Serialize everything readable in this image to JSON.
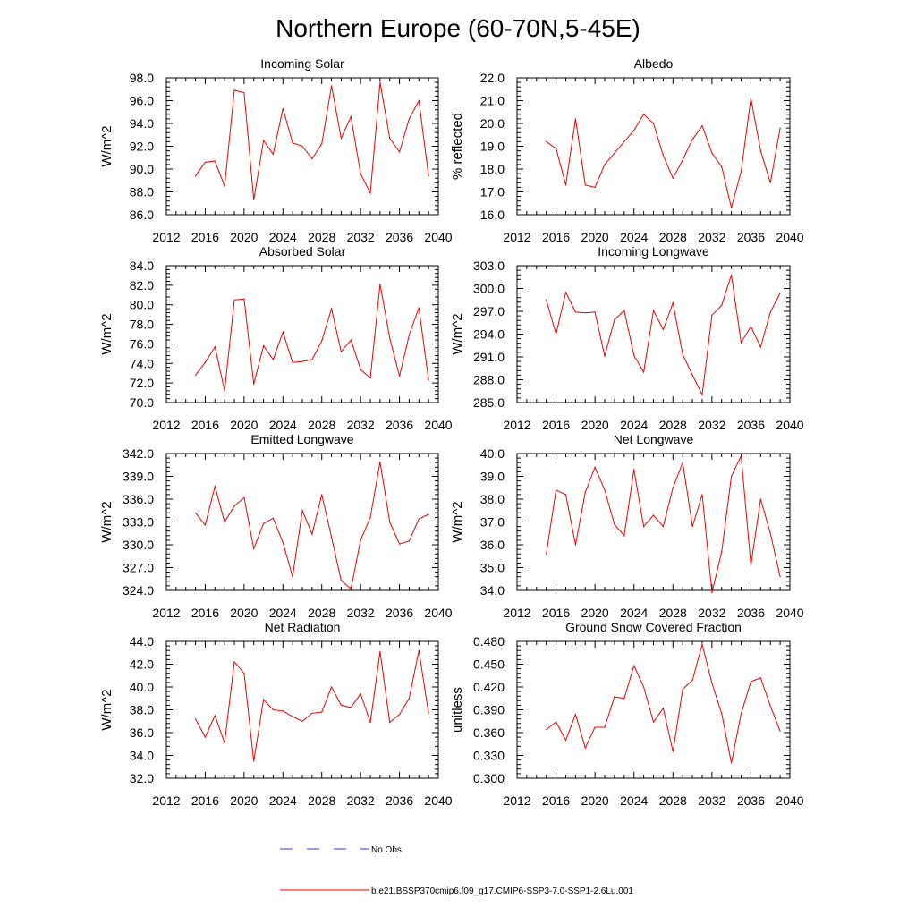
{
  "figure": {
    "title": "Northern Europe (60-70N,5-45E)"
  },
  "legend": {
    "obs_label": "No Obs",
    "obs_color": "#3a3ac8",
    "model_label": "b.e21.BSSP370cmip6.f09_g17.CMIP6-SSP3-7.0-SSP1-2.6Lu.001",
    "model_color": "#ee0000"
  },
  "chart_data": [
    {
      "type": "line",
      "title": "Incoming Solar",
      "ylabel": "W/m^2",
      "xlabel": "",
      "xlim": [
        2012,
        2040
      ],
      "xticks": [
        "2012",
        "2016",
        "2020",
        "2024",
        "2028",
        "2032",
        "2036",
        "2040"
      ],
      "ylim": [
        86.0,
        98.0
      ],
      "yticks": [
        "86.0",
        "88.0",
        "90.0",
        "92.0",
        "94.0",
        "96.0",
        "98.0"
      ],
      "x": [
        2015,
        2016,
        2017,
        2018,
        2019,
        2020,
        2021,
        2022,
        2023,
        2024,
        2025,
        2026,
        2027,
        2028,
        2029,
        2030,
        2031,
        2032,
        2033,
        2034,
        2035,
        2036,
        2037,
        2038,
        2039
      ],
      "series": [
        {
          "values": [
            89.4,
            90.6,
            90.7,
            88.5,
            96.9,
            96.7,
            87.3,
            92.5,
            91.3,
            95.3,
            92.3,
            92.0,
            90.9,
            92.2,
            97.3,
            92.7,
            94.6,
            89.6,
            87.9,
            97.6,
            92.7,
            91.5,
            94.4,
            96.0,
            89.4
          ]
        }
      ]
    },
    {
      "type": "line",
      "title": "Albedo",
      "ylabel": "% reflected",
      "xlabel": "",
      "xlim": [
        2012,
        2040
      ],
      "xticks": [
        "2012",
        "2016",
        "2020",
        "2024",
        "2028",
        "2032",
        "2036",
        "2040"
      ],
      "ylim": [
        16.0,
        22.0
      ],
      "yticks": [
        "16.0",
        "17.0",
        "18.0",
        "19.0",
        "20.0",
        "21.0",
        "22.0"
      ],
      "x": [
        2015,
        2016,
        2017,
        2018,
        2019,
        2020,
        2021,
        2022,
        2023,
        2024,
        2025,
        2026,
        2027,
        2028,
        2029,
        2030,
        2031,
        2032,
        2033,
        2034,
        2035,
        2036,
        2037,
        2038,
        2039
      ],
      "series": [
        {
          "values": [
            19.2,
            18.9,
            17.3,
            20.2,
            17.3,
            17.2,
            18.2,
            18.7,
            19.2,
            19.7,
            20.4,
            20.0,
            18.6,
            17.6,
            18.4,
            19.3,
            19.9,
            18.7,
            18.1,
            16.3,
            17.9,
            21.1,
            18.8,
            17.4,
            19.8
          ]
        }
      ]
    },
    {
      "type": "line",
      "title": "Absorbed Solar",
      "ylabel": "W/m^2",
      "xlabel": "",
      "xlim": [
        2012,
        2040
      ],
      "xticks": [
        "2012",
        "2016",
        "2020",
        "2024",
        "2028",
        "2032",
        "2036",
        "2040"
      ],
      "ylim": [
        70.0,
        84.0
      ],
      "yticks": [
        "70.0",
        "72.0",
        "74.0",
        "76.0",
        "78.0",
        "80.0",
        "82.0",
        "84.0"
      ],
      "x": [
        2015,
        2016,
        2017,
        2018,
        2019,
        2020,
        2021,
        2022,
        2023,
        2024,
        2025,
        2026,
        2027,
        2028,
        2029,
        2030,
        2031,
        2032,
        2033,
        2034,
        2035,
        2036,
        2037,
        2038,
        2039
      ],
      "series": [
        {
          "values": [
            72.8,
            74.1,
            75.7,
            71.2,
            80.5,
            80.6,
            71.9,
            75.8,
            74.4,
            77.2,
            74.1,
            74.2,
            74.4,
            76.3,
            79.6,
            75.2,
            76.4,
            73.4,
            72.5,
            82.1,
            76.6,
            72.7,
            76.9,
            79.7,
            72.3
          ]
        }
      ]
    },
    {
      "type": "line",
      "title": "Incoming Longwave",
      "ylabel": "W/m^2",
      "xlabel": "",
      "xlim": [
        2012,
        2040
      ],
      "xticks": [
        "2012",
        "2016",
        "2020",
        "2024",
        "2028",
        "2032",
        "2036",
        "2040"
      ],
      "ylim": [
        285.0,
        303.0
      ],
      "yticks": [
        "285.0",
        "288.0",
        "291.0",
        "294.0",
        "297.0",
        "300.0",
        "303.0"
      ],
      "x": [
        2015,
        2016,
        2017,
        2018,
        2019,
        2020,
        2021,
        2022,
        2023,
        2024,
        2025,
        2026,
        2027,
        2028,
        2029,
        2030,
        2031,
        2032,
        2033,
        2034,
        2035,
        2036,
        2037,
        2038,
        2039
      ],
      "series": [
        {
          "values": [
            298.5,
            294.0,
            299.5,
            296.9,
            296.8,
            296.9,
            291.1,
            295.9,
            297.1,
            291.2,
            289.0,
            297.1,
            294.6,
            298.1,
            291.3,
            288.6,
            286.0,
            296.5,
            297.8,
            301.8,
            292.9,
            295.0,
            292.3,
            296.9,
            299.4
          ]
        }
      ]
    },
    {
      "type": "line",
      "title": "Emitted Longwave",
      "ylabel": "W/m^2",
      "xlabel": "",
      "xlim": [
        2012,
        2040
      ],
      "xticks": [
        "2012",
        "2016",
        "2020",
        "2024",
        "2028",
        "2032",
        "2036",
        "2040"
      ],
      "ylim": [
        324.0,
        342.0
      ],
      "yticks": [
        "324.0",
        "327.0",
        "330.0",
        "333.0",
        "336.0",
        "339.0",
        "342.0"
      ],
      "x": [
        2015,
        2016,
        2017,
        2018,
        2019,
        2020,
        2021,
        2022,
        2023,
        2024,
        2025,
        2026,
        2027,
        2028,
        2029,
        2030,
        2031,
        2032,
        2033,
        2034,
        2035,
        2036,
        2037,
        2038,
        2039
      ],
      "series": [
        {
          "values": [
            334.2,
            332.6,
            337.7,
            333.0,
            335.1,
            336.2,
            329.5,
            332.8,
            333.5,
            330.3,
            325.8,
            334.5,
            331.4,
            336.6,
            331.0,
            325.3,
            324.2,
            330.6,
            333.6,
            340.9,
            333.0,
            330.1,
            330.5,
            333.4,
            334.0
          ]
        }
      ]
    },
    {
      "type": "line",
      "title": "Net Longwave",
      "ylabel": "W/m^2",
      "xlabel": "",
      "xlim": [
        2012,
        2040
      ],
      "xticks": [
        "2012",
        "2016",
        "2020",
        "2024",
        "2028",
        "2032",
        "2036",
        "2040"
      ],
      "ylim": [
        34.0,
        40.0
      ],
      "yticks": [
        "34.0",
        "35.0",
        "36.0",
        "37.0",
        "38.0",
        "39.0",
        "40.0"
      ],
      "x": [
        2015,
        2016,
        2017,
        2018,
        2019,
        2020,
        2021,
        2022,
        2023,
        2024,
        2025,
        2026,
        2027,
        2028,
        2029,
        2030,
        2031,
        2032,
        2033,
        2034,
        2035,
        2036,
        2037,
        2038,
        2039
      ],
      "series": [
        {
          "values": [
            35.6,
            38.4,
            38.2,
            36.0,
            38.3,
            39.4,
            38.4,
            36.9,
            36.4,
            39.3,
            36.8,
            37.3,
            36.8,
            38.5,
            39.6,
            36.8,
            38.2,
            33.9,
            35.7,
            39.0,
            39.9,
            35.1,
            38.0,
            36.5,
            34.6
          ]
        }
      ]
    },
    {
      "type": "line",
      "title": "Net Radiation",
      "ylabel": "W/m^2",
      "xlabel": "",
      "xlim": [
        2012,
        2040
      ],
      "xticks": [
        "2012",
        "2016",
        "2020",
        "2024",
        "2028",
        "2032",
        "2036",
        "2040"
      ],
      "ylim": [
        32.0,
        44.0
      ],
      "yticks": [
        "32.0",
        "34.0",
        "36.0",
        "38.0",
        "40.0",
        "42.0",
        "44.0"
      ],
      "x": [
        2015,
        2016,
        2017,
        2018,
        2019,
        2020,
        2021,
        2022,
        2023,
        2024,
        2025,
        2026,
        2027,
        2028,
        2029,
        2030,
        2031,
        2032,
        2033,
        2034,
        2035,
        2036,
        2037,
        2038,
        2039
      ],
      "series": [
        {
          "values": [
            37.2,
            35.6,
            37.5,
            35.1,
            42.2,
            41.2,
            33.5,
            38.9,
            38.0,
            37.9,
            37.4,
            37.0,
            37.7,
            37.8,
            40.0,
            38.4,
            38.2,
            39.4,
            36.9,
            43.1,
            36.9,
            37.6,
            39.0,
            43.2,
            37.7
          ]
        }
      ]
    },
    {
      "type": "line",
      "title": "Ground Snow Covered Fraction",
      "ylabel": "unitless",
      "xlabel": "",
      "xlim": [
        2012,
        2040
      ],
      "xticks": [
        "2012",
        "2016",
        "2020",
        "2024",
        "2028",
        "2032",
        "2036",
        "2040"
      ],
      "ylim": [
        0.3,
        0.48
      ],
      "yticks": [
        "0.300",
        "0.330",
        "0.360",
        "0.390",
        "0.420",
        "0.450",
        "0.480"
      ],
      "x": [
        2015,
        2016,
        2017,
        2018,
        2019,
        2020,
        2021,
        2022,
        2023,
        2024,
        2025,
        2026,
        2027,
        2028,
        2029,
        2030,
        2031,
        2032,
        2033,
        2034,
        2035,
        2036,
        2037,
        2038,
        2039
      ],
      "series": [
        {
          "values": [
            0.364,
            0.374,
            0.35,
            0.384,
            0.34,
            0.367,
            0.367,
            0.407,
            0.405,
            0.448,
            0.42,
            0.374,
            0.392,
            0.335,
            0.417,
            0.429,
            0.476,
            0.425,
            0.385,
            0.32,
            0.385,
            0.427,
            0.432,
            0.395,
            0.362
          ]
        }
      ]
    }
  ]
}
